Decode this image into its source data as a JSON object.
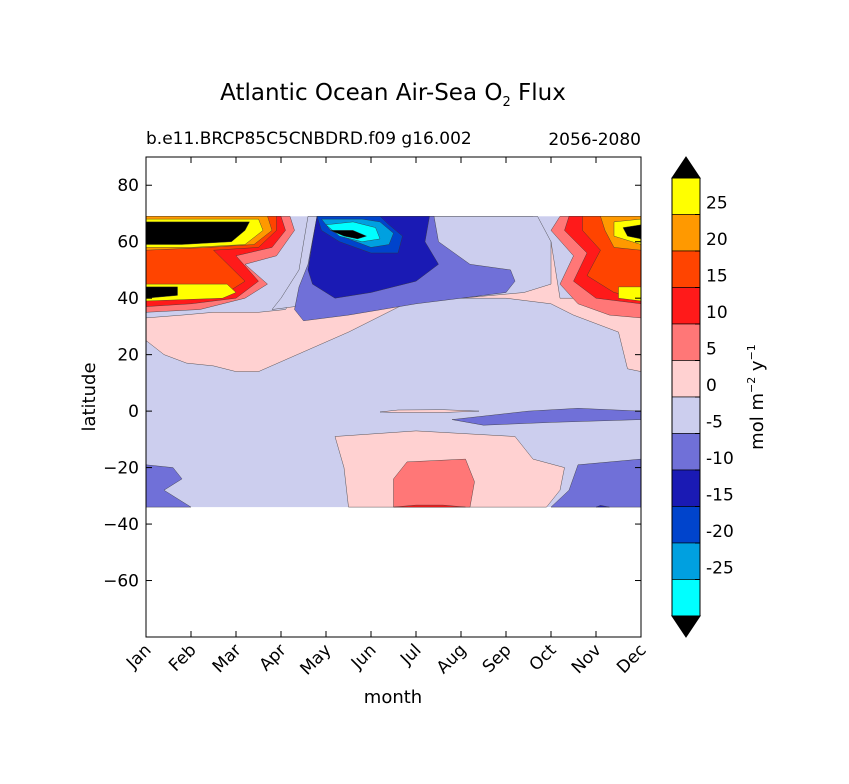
{
  "chart_data": {
    "type": "heatmap",
    "title": "Atlantic Ocean Air-Sea O",
    "title_sub": "2",
    "title_end": "Flux",
    "subtitle_left": "b.e11.BRCP85C5CNBDRD.f09 g16.002",
    "subtitle_right": "2056-2080",
    "xlabel": "month",
    "ylabel": "latitude",
    "x_ticks": [
      "Jan",
      "Feb",
      "Mar",
      "Apr",
      "May",
      "Jun",
      "Jul",
      "Aug",
      "Sep",
      "Oct",
      "Nov",
      "Dec"
    ],
    "y_ticks": [
      80,
      60,
      40,
      20,
      0,
      -20,
      -40,
      -60
    ],
    "y_tick_labels": [
      "80",
      "60",
      "40",
      "20",
      "0",
      "−20",
      "−40",
      "−60"
    ],
    "xlim": [
      0,
      11
    ],
    "ylim": [
      -80,
      90
    ],
    "data_lat_range": [
      -34,
      69
    ],
    "colorbar": {
      "label": "mol m",
      "label_sup1": "−2",
      "label_mid": "y",
      "label_sup2": "−1",
      "ticks": [
        "25",
        "20",
        "15",
        "10",
        "5",
        "0",
        "-5",
        "-10",
        "-15",
        "-20",
        "-25"
      ],
      "extend": "both",
      "colors_top_to_bottom": [
        "#000000",
        "#ffff00",
        "#ff9900",
        "#ff4400",
        "#ff1a1a",
        "#ff7777",
        "#ffd1d1",
        "#ccceee",
        "#7070d8",
        "#1a1ab4",
        "#0044cc",
        "#00a0e0",
        "#00ffff",
        "#000000"
      ]
    },
    "regions": [
      {
        "level": "0 to 5",
        "color": "#ffd1d1",
        "lon": [
          [
            0,
            25
          ],
          [
            0.4,
            20
          ],
          [
            0.9,
            17
          ],
          [
            1.5,
            16
          ],
          [
            2.0,
            14
          ],
          [
            2.5,
            14
          ],
          [
            4.5,
            28
          ],
          [
            6,
            40
          ],
          [
            8,
            40
          ],
          [
            9,
            38
          ],
          [
            9.5,
            34
          ],
          [
            10.5,
            28
          ],
          [
            10.7,
            15
          ],
          [
            11,
            14
          ],
          [
            11,
            69
          ],
          [
            9.7,
            69
          ],
          [
            9.8,
            60
          ],
          [
            9.5,
            40
          ],
          [
            9.2,
            40
          ],
          [
            9.0,
            60
          ],
          [
            8.6,
            69
          ],
          [
            4.0,
            69
          ],
          [
            3.8,
            55
          ],
          [
            3.5,
            45
          ],
          [
            3.1,
            36
          ],
          [
            2.5,
            35
          ],
          [
            1.5,
            35
          ],
          [
            0.8,
            34
          ],
          [
            0,
            33
          ]
        ]
      },
      {
        "level": "-5 to 0",
        "color": "#ccceee",
        "lon": [
          [
            3.6,
            69
          ],
          [
            3.4,
            50
          ],
          [
            3.0,
            40
          ],
          [
            2.8,
            36
          ],
          [
            3.8,
            38
          ],
          [
            5,
            40
          ],
          [
            7,
            40
          ],
          [
            8.4,
            42
          ],
          [
            9.0,
            45
          ],
          [
            9.0,
            60
          ],
          [
            8.7,
            69
          ]
        ]
      },
      {
        "level": "-10 to -5",
        "color": "#7070d8",
        "lon": [
          [
            3.8,
            69
          ],
          [
            3.6,
            52
          ],
          [
            3.4,
            44
          ],
          [
            3.3,
            36
          ],
          [
            3.5,
            32
          ],
          [
            4.5,
            34
          ],
          [
            6,
            38
          ],
          [
            7,
            40
          ],
          [
            8.0,
            42
          ],
          [
            8.2,
            46
          ],
          [
            8.1,
            50
          ],
          [
            7.2,
            52
          ],
          [
            6.5,
            60
          ],
          [
            6.4,
            69
          ]
        ]
      },
      {
        "level": "-15 to -10",
        "color": "#1a1ab4",
        "lon": [
          [
            3.8,
            69
          ],
          [
            3.7,
            60
          ],
          [
            3.6,
            50
          ],
          [
            3.7,
            45
          ],
          [
            4.2,
            40
          ],
          [
            5.0,
            42
          ],
          [
            6.0,
            46
          ],
          [
            6.5,
            52
          ],
          [
            6.2,
            60
          ],
          [
            6.3,
            69
          ]
        ]
      },
      {
        "level": "-20 to -15",
        "color": "#0044cc",
        "lon": [
          [
            3.8,
            69
          ],
          [
            3.9,
            64
          ],
          [
            4.3,
            60
          ],
          [
            5.0,
            56
          ],
          [
            5.6,
            56
          ],
          [
            5.7,
            62
          ],
          [
            5.4,
            66
          ],
          [
            5.2,
            69
          ]
        ]
      },
      {
        "level": "-25 to -20",
        "color": "#00a0e0",
        "lon": [
          [
            3.9,
            68
          ],
          [
            4.1,
            64
          ],
          [
            4.5,
            61
          ],
          [
            5.0,
            58
          ],
          [
            5.4,
            59
          ],
          [
            5.5,
            63
          ],
          [
            5.2,
            67
          ],
          [
            4.8,
            68
          ]
        ]
      },
      {
        "level": "< -25",
        "color": "#00ffff",
        "lon": [
          [
            4.0,
            66
          ],
          [
            4.3,
            62
          ],
          [
            4.8,
            60
          ],
          [
            5.2,
            61
          ],
          [
            5.1,
            65
          ],
          [
            4.6,
            67
          ]
        ]
      },
      {
        "level": "<< -25",
        "color": "#000000",
        "lon": [
          [
            4.1,
            64
          ],
          [
            4.4,
            62
          ],
          [
            4.7,
            61
          ],
          [
            4.9,
            62
          ],
          [
            4.6,
            64
          ]
        ]
      },
      {
        "level": "5 to 10 (west)",
        "color": "#ff7777",
        "lon": [
          [
            0,
            69
          ],
          [
            3.2,
            69
          ],
          [
            3.3,
            64
          ],
          [
            2.9,
            55
          ],
          [
            2.2,
            52
          ],
          [
            2.7,
            45
          ],
          [
            2.2,
            40
          ],
          [
            1.2,
            36
          ],
          [
            0,
            35
          ]
        ]
      },
      {
        "level": "10 to 15 (west)",
        "color": "#ff1a1a",
        "lon": [
          [
            0,
            69
          ],
          [
            3.0,
            69
          ],
          [
            3.1,
            64
          ],
          [
            2.8,
            58
          ],
          [
            2.0,
            55
          ],
          [
            2.5,
            46
          ],
          [
            2.0,
            40
          ],
          [
            1.0,
            38
          ],
          [
            0,
            37
          ]
        ]
      },
      {
        "level": "15 to 20 (west)",
        "color": "#ff4400",
        "lon": [
          [
            0,
            69
          ],
          [
            2.9,
            69
          ],
          [
            2.9,
            64
          ],
          [
            2.5,
            58
          ],
          [
            1.5,
            57
          ],
          [
            2.2,
            46
          ],
          [
            1.7,
            41
          ],
          [
            0,
            40
          ]
        ]
      },
      {
        "level": "20 to 25 (west)",
        "color": "#ff9900",
        "lon": [
          [
            0,
            69
          ],
          [
            2.7,
            69
          ],
          [
            2.8,
            64
          ],
          [
            2.4,
            59
          ],
          [
            1.4,
            58
          ],
          [
            0,
            57
          ]
        ]
      },
      {
        "level": "> 25 (west)",
        "color": "#ffff00",
        "lon": [
          [
            0,
            68
          ],
          [
            2.5,
            68
          ],
          [
            2.6,
            64
          ],
          [
            2.2,
            59
          ],
          [
            1.0,
            58
          ],
          [
            0,
            58
          ]
        ]
      },
      {
        "level": ">> 25 (west)",
        "color": "#000000",
        "lon": [
          [
            0,
            67
          ],
          [
            2.3,
            67
          ],
          [
            2.2,
            64
          ],
          [
            1.9,
            60
          ],
          [
            0.8,
            59
          ],
          [
            0,
            59
          ]
        ]
      },
      {
        "level": "> 25 (west, 40N)",
        "color": "#ffff00",
        "lon": [
          [
            0,
            45
          ],
          [
            1.8,
            45
          ],
          [
            2.0,
            42
          ],
          [
            1.7,
            40
          ],
          [
            0,
            39
          ]
        ]
      },
      {
        "level": ">> 25 (west, 40N)",
        "color": "#000000",
        "lon": [
          [
            0,
            44
          ],
          [
            0.7,
            44
          ],
          [
            0.7,
            41
          ],
          [
            0,
            40
          ]
        ]
      },
      {
        "level": "5 to 10 (east)",
        "color": "#ff7777",
        "lon": [
          [
            11,
            69
          ],
          [
            9.2,
            69
          ],
          [
            9.0,
            64
          ],
          [
            9.5,
            55
          ],
          [
            9.2,
            45
          ],
          [
            9.6,
            38
          ],
          [
            10.3,
            34
          ],
          [
            11,
            33
          ]
        ]
      },
      {
        "level": "10 to 15 (east)",
        "color": "#ff1a1a",
        "lon": [
          [
            11,
            69
          ],
          [
            9.4,
            69
          ],
          [
            9.3,
            64
          ],
          [
            9.8,
            56
          ],
          [
            9.5,
            46
          ],
          [
            10.0,
            40
          ],
          [
            11,
            38
          ]
        ]
      },
      {
        "level": "15 to 20 (east)",
        "color": "#ff4400",
        "lon": [
          [
            11,
            69
          ],
          [
            9.7,
            69
          ],
          [
            9.7,
            64
          ],
          [
            10.1,
            57
          ],
          [
            9.8,
            48
          ],
          [
            10.4,
            42
          ],
          [
            11,
            40
          ]
        ]
      },
      {
        "level": "20 to 25 (east)",
        "color": "#ff9900",
        "lon": [
          [
            11,
            69
          ],
          [
            10.1,
            69
          ],
          [
            10.2,
            64
          ],
          [
            10.4,
            58
          ],
          [
            11,
            57
          ]
        ]
      },
      {
        "level": "> 25 (east)",
        "color": "#ffff00",
        "lon": [
          [
            11,
            68
          ],
          [
            10.4,
            67
          ],
          [
            10.4,
            62
          ],
          [
            11,
            59
          ]
        ]
      },
      {
        "level": ">> 25 (east)",
        "color": "#000000",
        "lon": [
          [
            11,
            66
          ],
          [
            10.6,
            65
          ],
          [
            10.7,
            62
          ],
          [
            11,
            61
          ]
        ]
      },
      {
        "level": "> 25 (east, 40N)",
        "color": "#ffff00",
        "lon": [
          [
            11,
            44
          ],
          [
            10.5,
            44
          ],
          [
            10.5,
            40
          ],
          [
            11,
            39
          ]
        ]
      },
      {
        "level": "0 to 5 (south)",
        "color": "#ffd1d1",
        "lon": [
          [
            4.5,
            -34
          ],
          [
            4.4,
            -20
          ],
          [
            4.2,
            -9
          ],
          [
            6,
            -7
          ],
          [
            8.2,
            -9
          ],
          [
            8.6,
            -17
          ],
          [
            9.3,
            -20
          ],
          [
            9.2,
            -28
          ],
          [
            8.9,
            -34
          ]
        ]
      },
      {
        "level": "5 to 10 (south)",
        "color": "#ff7777",
        "lon": [
          [
            5.5,
            -34
          ],
          [
            5.5,
            -24
          ],
          [
            5.8,
            -18
          ],
          [
            7.1,
            -17
          ],
          [
            7.3,
            -25
          ],
          [
            7.2,
            -34
          ]
        ]
      },
      {
        "level": "10 to 15 (south)",
        "color": "#ff1a1a",
        "lon": [
          [
            5.5,
            -34
          ],
          [
            6,
            -33.3
          ],
          [
            6.6,
            -33.3
          ],
          [
            7.1,
            -34
          ]
        ]
      },
      {
        "level": "-10 to -5 (south west)",
        "color": "#7070d8",
        "lon": [
          [
            0,
            -34
          ],
          [
            0,
            -19
          ],
          [
            0.6,
            -20
          ],
          [
            0.8,
            -24
          ],
          [
            0.4,
            -28
          ],
          [
            1.0,
            -34
          ]
        ]
      },
      {
        "level": "-10 to -5 (south east)",
        "color": "#7070d8",
        "lon": [
          [
            9.0,
            -34
          ],
          [
            9.4,
            -28
          ],
          [
            9.6,
            -19
          ],
          [
            11,
            -17
          ],
          [
            11,
            -34
          ]
        ]
      },
      {
        "level": "-15 to -10 (south east)",
        "color": "#1a1ab4",
        "lon": [
          [
            10.0,
            -34
          ],
          [
            10.1,
            -33.4
          ],
          [
            10.3,
            -34
          ]
        ]
      },
      {
        "level": "-10 to -5 (equator)",
        "color": "#7070d8",
        "lon": [
          [
            6.8,
            -3
          ],
          [
            8.5,
            0
          ],
          [
            9.6,
            1
          ],
          [
            11,
            0
          ],
          [
            11,
            -3
          ],
          [
            9.0,
            -4
          ],
          [
            7.5,
            -5
          ]
        ]
      },
      {
        "level": "0 to 5 (equator)",
        "color": "#ffd1d1",
        "lon": [
          [
            5.2,
            -0.3
          ],
          [
            5.6,
            0.4
          ],
          [
            6.6,
            0.5
          ],
          [
            7.4,
            0
          ],
          [
            6.6,
            -0.5
          ],
          [
            5.6,
            -0.5
          ]
        ]
      }
    ]
  }
}
